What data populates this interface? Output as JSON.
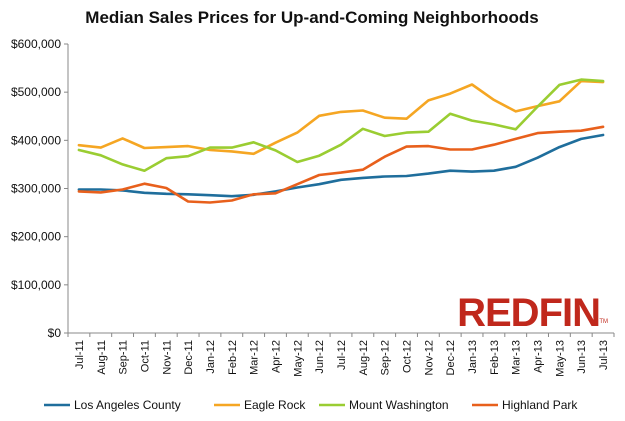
{
  "chart_data": {
    "type": "line",
    "title": "Median Sales Prices for Up-and-Coming Neighborhoods",
    "xlabel": "",
    "ylabel": "",
    "categories": [
      "Jul-11",
      "Aug-11",
      "Sep-11",
      "Oct-11",
      "Nov-11",
      "Dec-11",
      "Jan-12",
      "Feb-12",
      "Mar-12",
      "Apr-12",
      "May-12",
      "Jun-12",
      "Jul-12",
      "Aug-12",
      "Sep-12",
      "Oct-12",
      "Nov-12",
      "Dec-12",
      "Jan-13",
      "Feb-13",
      "Mar-13",
      "Apr-13",
      "May-13",
      "Jun-13",
      "Jul-13"
    ],
    "ylim": [
      0,
      600000
    ],
    "y_ticks": [
      0,
      100000,
      200000,
      300000,
      400000,
      500000,
      600000
    ],
    "y_tick_labels": [
      "$0",
      "$100,000",
      "$200,000",
      "$300,000",
      "$400,000",
      "$500,000",
      "$600,000"
    ],
    "grid": false,
    "legend_position": "bottom",
    "series": [
      {
        "name": "Los Angeles County",
        "color": "#1f6e9c",
        "values": [
          298000,
          298000,
          296000,
          291000,
          289000,
          288000,
          286000,
          284000,
          287000,
          294000,
          302000,
          309000,
          318000,
          322000,
          325000,
          326000,
          331000,
          337000,
          335000,
          337000,
          345000,
          364000,
          386000,
          403000,
          411000
        ]
      },
      {
        "name": "Eagle Rock",
        "color": "#f5a623",
        "values": [
          390000,
          385000,
          404000,
          384000,
          386000,
          388000,
          380000,
          377000,
          372000,
          395000,
          416000,
          451000,
          459000,
          462000,
          447000,
          445000,
          483000,
          497000,
          516000,
          484000,
          460000,
          471000,
          481000,
          523000,
          521000
        ]
      },
      {
        "name": "Mount Washington",
        "color": "#9acd32",
        "values": [
          380000,
          369000,
          350000,
          337000,
          363000,
          367000,
          385000,
          385000,
          396000,
          379000,
          355000,
          368000,
          391000,
          424000,
          409000,
          416000,
          418000,
          455000,
          441000,
          433000,
          423000,
          470000,
          515000,
          526000,
          523000
        ]
      },
      {
        "name": "Highland Park",
        "color": "#e8601c",
        "values": [
          294000,
          292000,
          298000,
          310000,
          301000,
          273000,
          271000,
          275000,
          288000,
          290000,
          309000,
          328000,
          333000,
          339000,
          366000,
          387000,
          388000,
          381000,
          381000,
          391000,
          403000,
          415000,
          418000,
          420000,
          428000
        ]
      }
    ]
  },
  "logo": {
    "text": "REDFIN",
    "tm": "TM"
  }
}
